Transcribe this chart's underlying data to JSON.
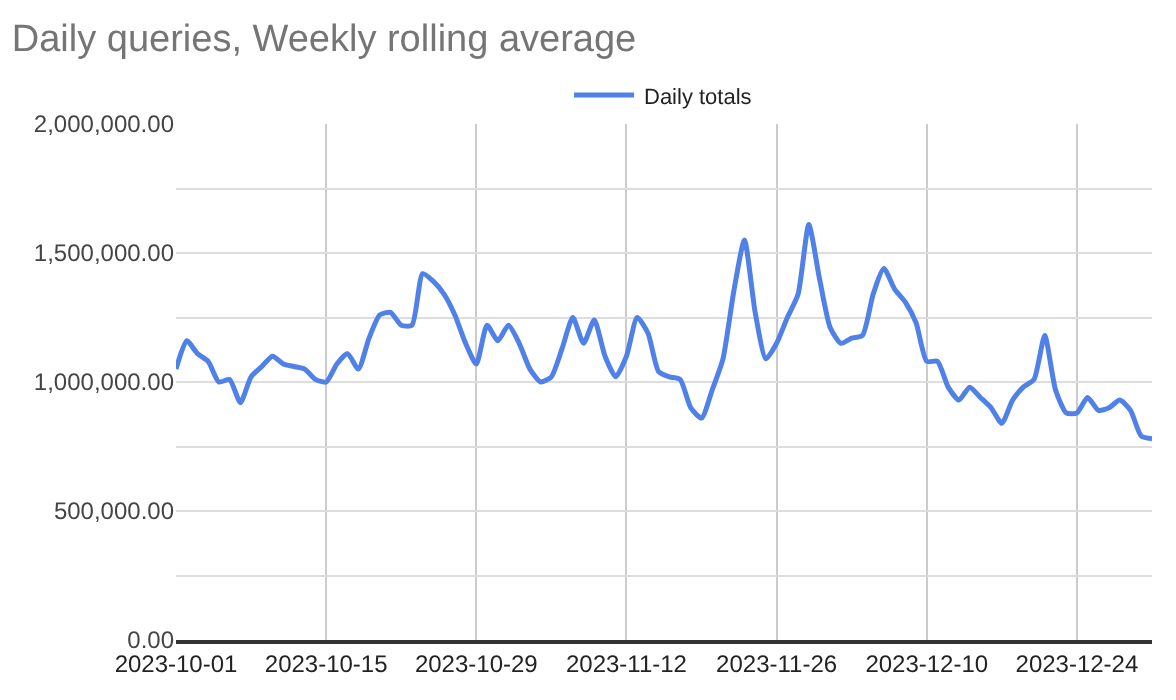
{
  "chart_data": {
    "type": "line",
    "title": "Daily queries, Weekly rolling average",
    "x": [
      "2023-10-01",
      "2023-10-02",
      "2023-10-03",
      "2023-10-04",
      "2023-10-05",
      "2023-10-06",
      "2023-10-07",
      "2023-10-08",
      "2023-10-09",
      "2023-10-10",
      "2023-10-11",
      "2023-10-12",
      "2023-10-13",
      "2023-10-14",
      "2023-10-15",
      "2023-10-16",
      "2023-10-17",
      "2023-10-18",
      "2023-10-19",
      "2023-10-20",
      "2023-10-21",
      "2023-10-22",
      "2023-10-23",
      "2023-10-24",
      "2023-10-25",
      "2023-10-26",
      "2023-10-27",
      "2023-10-28",
      "2023-10-29",
      "2023-10-30",
      "2023-10-31",
      "2023-11-01",
      "2023-11-02",
      "2023-11-03",
      "2023-11-04",
      "2023-11-05",
      "2023-11-06",
      "2023-11-07",
      "2023-11-08",
      "2023-11-09",
      "2023-11-10",
      "2023-11-11",
      "2023-11-12",
      "2023-11-13",
      "2023-11-14",
      "2023-11-15",
      "2023-11-16",
      "2023-11-17",
      "2023-11-18",
      "2023-11-19",
      "2023-11-20",
      "2023-11-21",
      "2023-11-22",
      "2023-11-23",
      "2023-11-24",
      "2023-11-25",
      "2023-11-26",
      "2023-11-27",
      "2023-11-28",
      "2023-11-29",
      "2023-11-30",
      "2023-12-01",
      "2023-12-02",
      "2023-12-03",
      "2023-12-04",
      "2023-12-05",
      "2023-12-06",
      "2023-12-07",
      "2023-12-08",
      "2023-12-09",
      "2023-12-10",
      "2023-12-11",
      "2023-12-12",
      "2023-12-13",
      "2023-12-14",
      "2023-12-15",
      "2023-12-16",
      "2023-12-17",
      "2023-12-18",
      "2023-12-19",
      "2023-12-20",
      "2023-12-21",
      "2023-12-22",
      "2023-12-23",
      "2023-12-24",
      "2023-12-25",
      "2023-12-26",
      "2023-12-27",
      "2023-12-28",
      "2023-12-29",
      "2023-12-30",
      "2023-12-31"
    ],
    "series": [
      {
        "name": "Daily totals",
        "color": "#4f81e8",
        "values": [
          1050000,
          1160000,
          1110000,
          1080000,
          1000000,
          1010000,
          920000,
          1020000,
          1060000,
          1100000,
          1070000,
          1060000,
          1050000,
          1010000,
          1000000,
          1070000,
          1110000,
          1050000,
          1170000,
          1260000,
          1270000,
          1220000,
          1220000,
          1420000,
          1390000,
          1340000,
          1260000,
          1150000,
          1070000,
          1220000,
          1160000,
          1220000,
          1150000,
          1050000,
          1000000,
          1020000,
          1130000,
          1250000,
          1150000,
          1240000,
          1100000,
          1020000,
          1100000,
          1250000,
          1190000,
          1040000,
          1020000,
          1010000,
          900000,
          860000,
          970000,
          1090000,
          1350000,
          1550000,
          1270000,
          1090000,
          1150000,
          1250000,
          1340000,
          1610000,
          1400000,
          1210000,
          1150000,
          1170000,
          1180000,
          1340000,
          1440000,
          1360000,
          1310000,
          1230000,
          1080000,
          1080000,
          980000,
          930000,
          980000,
          940000,
          900000,
          840000,
          930000,
          980000,
          1010000,
          1180000,
          970000,
          880000,
          880000,
          940000,
          890000,
          900000,
          930000,
          890000,
          790000,
          780000
        ]
      }
    ],
    "xlim": [
      "2023-10-01",
      "2023-12-31"
    ],
    "xticks": [
      "2023-10-01",
      "2023-10-15",
      "2023-10-29",
      "2023-11-12",
      "2023-11-26",
      "2023-12-10",
      "2023-12-24"
    ],
    "ylim": [
      0,
      2000000
    ],
    "yticks": [
      {
        "value": 0,
        "label": "0.00"
      },
      {
        "value": 250000,
        "label": null
      },
      {
        "value": 500000,
        "label": "500,000.00"
      },
      {
        "value": 750000,
        "label": null
      },
      {
        "value": 1000000,
        "label": "1,000,000.00"
      },
      {
        "value": 1250000,
        "label": null
      },
      {
        "value": 1500000,
        "label": "1,500,000.00"
      },
      {
        "value": 1750000,
        "label": null
      },
      {
        "value": 2000000,
        "label": "2,000,000.00"
      }
    ],
    "grid": true,
    "legend": "top",
    "marker": "none",
    "line_style": "solid"
  }
}
